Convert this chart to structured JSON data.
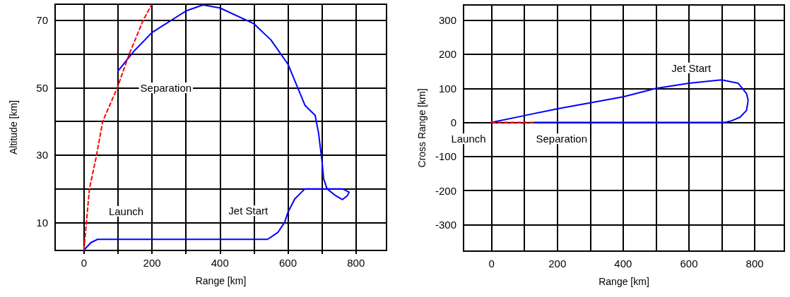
{
  "chart_data": [
    {
      "type": "line",
      "xlabel": "Range [km]",
      "ylabel": "Altitude [km]",
      "xlim": [
        -85,
        890
      ],
      "ylim": [
        1.7,
        74.8
      ],
      "xticks": [
        0,
        {
          "value": 100,
          "label": null
        },
        200,
        {
          "value": 300,
          "label": null
        },
        400,
        {
          "value": 500,
          "label": null
        },
        600,
        {
          "value": 700,
          "label": null
        },
        800
      ],
      "yticks": [
        10,
        {
          "value": 20,
          "label": null
        },
        30,
        {
          "value": 40,
          "label": null
        },
        50,
        {
          "value": 60,
          "label": null
        },
        70
      ],
      "grid": true,
      "marker": "none",
      "series": [
        {
          "color": "#0000ff",
          "line_style": "solid",
          "x": [
            0,
            20,
            40,
            540,
            570,
            590,
            600,
            620,
            650,
            700,
            760,
            780,
            775,
            760,
            740,
            715,
            705,
            700,
            690,
            680,
            650,
            600,
            550,
            500,
            400,
            350,
            300,
            200,
            150,
            120,
            100
          ],
          "values": [
            1.8,
            4,
            5,
            5,
            7,
            10,
            13,
            17,
            20,
            20,
            20,
            19,
            18,
            16.8,
            18,
            20,
            23,
            28.4,
            36.6,
            41.8,
            44.8,
            57,
            64.2,
            69,
            73.7,
            74.6,
            72.8,
            66.4,
            61.2,
            57.5,
            55
          ]
        },
        {
          "color": "#ff0000",
          "line_style": "dashed",
          "x": [
            0,
            7,
            16,
            37,
            55,
            98,
            133,
            174,
            198
          ],
          "values": [
            2,
            10,
            20,
            30,
            40,
            50,
            60,
            70,
            74.5
          ]
        }
      ],
      "annotations": [
        "Separation",
        "Launch",
        "Jet Start"
      ]
    },
    {
      "type": "line",
      "xlabel": "Range [km]",
      "ylabel": "Cross Range [km]",
      "xlim": [
        -85,
        890
      ],
      "ylim": [
        -378,
        345
      ],
      "xticks": [
        0,
        {
          "value": 100,
          "label": null
        },
        200,
        {
          "value": 300,
          "label": null
        },
        400,
        {
          "value": 500,
          "label": null
        },
        600,
        {
          "value": 700,
          "label": null
        },
        800
      ],
      "yticks": [
        -300,
        -200,
        -100,
        0,
        100,
        200,
        300
      ],
      "grid": true,
      "marker": "none",
      "series": [
        {
          "color": "#0000ff",
          "line_style": "solid",
          "x": [
            0,
            100,
            200,
            400,
            500,
            600,
            700,
            750,
            775,
            780,
            775,
            755,
            730,
            710,
            130
          ],
          "values": [
            0,
            20,
            40,
            75,
            100,
            115,
            125,
            115,
            85,
            65,
            35,
            15,
            5,
            0,
            0
          ]
        },
        {
          "color": "#ff0000",
          "line_style": "dashed",
          "x": [
            0,
            130
          ],
          "values": [
            0,
            0
          ]
        }
      ],
      "annotations": [
        "Jet Start",
        "Launch",
        "Separation"
      ]
    }
  ]
}
